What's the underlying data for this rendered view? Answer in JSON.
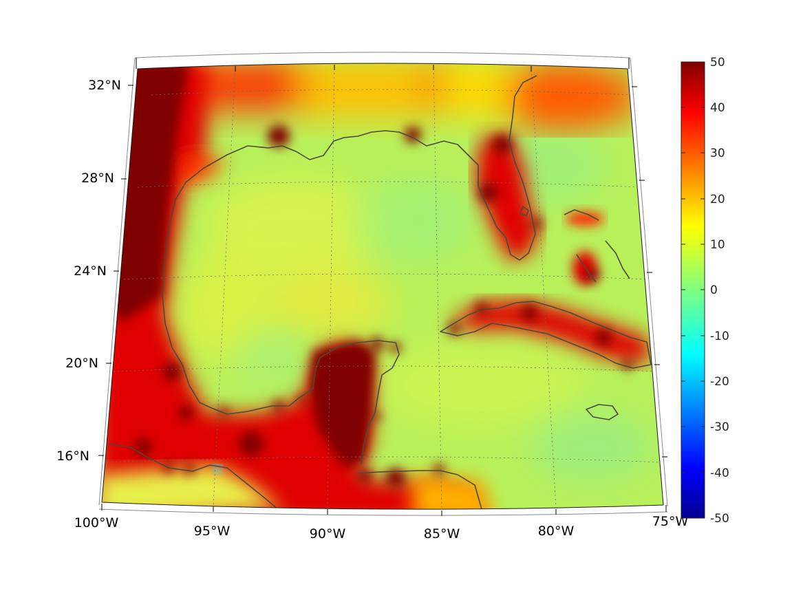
{
  "map": {
    "projection": "conic",
    "region": "Gulf of Mexico and Caribbean",
    "lon_range": [
      -100,
      -75
    ],
    "lat_range": [
      14,
      33
    ],
    "longitude_labels": [
      "100°W",
      "95°W",
      "90°W",
      "85°W",
      "80°W",
      "75°W"
    ],
    "latitude_labels": [
      "32°N",
      "28°N",
      "24°N",
      "20°N",
      "16°N"
    ],
    "grid": "dotted",
    "coastline_color": "#4a4a3a"
  },
  "colorbar": {
    "colormap": "jet",
    "range": [
      -50,
      50
    ],
    "tick_labels": [
      "50",
      "40",
      "30",
      "20",
      "10",
      "0",
      "-10",
      "-20",
      "-30",
      "-40",
      "-50"
    ],
    "placement": "right"
  }
}
